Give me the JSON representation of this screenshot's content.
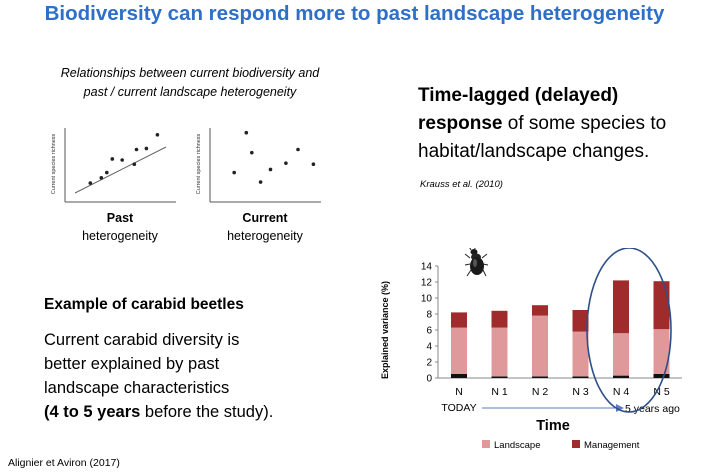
{
  "title": "Biodiversity can respond more to past landscape heterogeneity",
  "scatter_panel": {
    "caption_line1": "Relationships between current biodiversity and",
    "caption_line2": "past / current landscape heterogeneity",
    "y_axis_label": "Current species richness",
    "past": {
      "label_bold": "Past",
      "label_rest": "heterogeneity",
      "points": [
        [
          2.3,
          1.8
        ],
        [
          3.3,
          2.3
        ],
        [
          3.8,
          2.8
        ],
        [
          4.3,
          4.1
        ],
        [
          5.2,
          4.0
        ],
        [
          6.3,
          3.6
        ],
        [
          6.5,
          5.0
        ],
        [
          7.4,
          5.1
        ],
        [
          8.4,
          6.4
        ]
      ]
    },
    "current": {
      "label_bold": "Current",
      "label_rest": "heterogeneity",
      "points": [
        [
          3.3,
          6.6
        ],
        [
          3.8,
          4.7
        ],
        [
          2.2,
          2.8
        ],
        [
          4.6,
          1.9
        ],
        [
          5.5,
          3.1
        ],
        [
          6.9,
          3.7
        ],
        [
          8.0,
          5.0
        ],
        [
          9.4,
          3.6
        ]
      ]
    }
  },
  "delayed_response": {
    "line1_bold": "Time-lagged (delayed)",
    "line2_bold": "response",
    "line2_rest": " of some species to",
    "line3": "habitat/landscape changes.",
    "reference": "Krauss et al. (2010)"
  },
  "example": {
    "heading": "Example of carabid beetles",
    "line1": "Current carabid diversity is",
    "line2": "better explained by past",
    "line3": "landscape characteristics",
    "line4_bold": "(4 to 5 years",
    "line4_rest": " before the study)."
  },
  "source": "Alignier et Aviron (2017)",
  "icons": {
    "beetle": "beetle-icon"
  },
  "colors": {
    "title": "#2e6fc7",
    "landscape": "#e0999a",
    "management": "#a02b2d",
    "base": "#111111",
    "ellipse": "#2f4f86"
  },
  "chart_data": {
    "type": "bar",
    "stacked": true,
    "categories": [
      "N",
      "N 1",
      "N 2",
      "N 3",
      "N 4",
      "N 5"
    ],
    "category_sublabels": [
      "TODAY",
      "",
      "",
      "",
      "",
      ""
    ],
    "series": [
      {
        "values": [
          0.5,
          0.2,
          0.2,
          0.2,
          0.3,
          0.5
        ]
      },
      {
        "name": "Landscape",
        "values": [
          5.8,
          6.1,
          7.6,
          5.6,
          5.3,
          5.6
        ]
      },
      {
        "name": "Management",
        "values": [
          1.9,
          2.1,
          1.3,
          2.7,
          6.6,
          6.0
        ]
      }
    ],
    "xlabel": "Time",
    "ylabel": "Explained variance (%)",
    "ylim": [
      0,
      14
    ],
    "yticks": [
      0,
      2,
      4,
      6,
      8,
      10,
      12,
      14
    ],
    "annotation": "5 years ago",
    "legend_position": "bottom"
  }
}
